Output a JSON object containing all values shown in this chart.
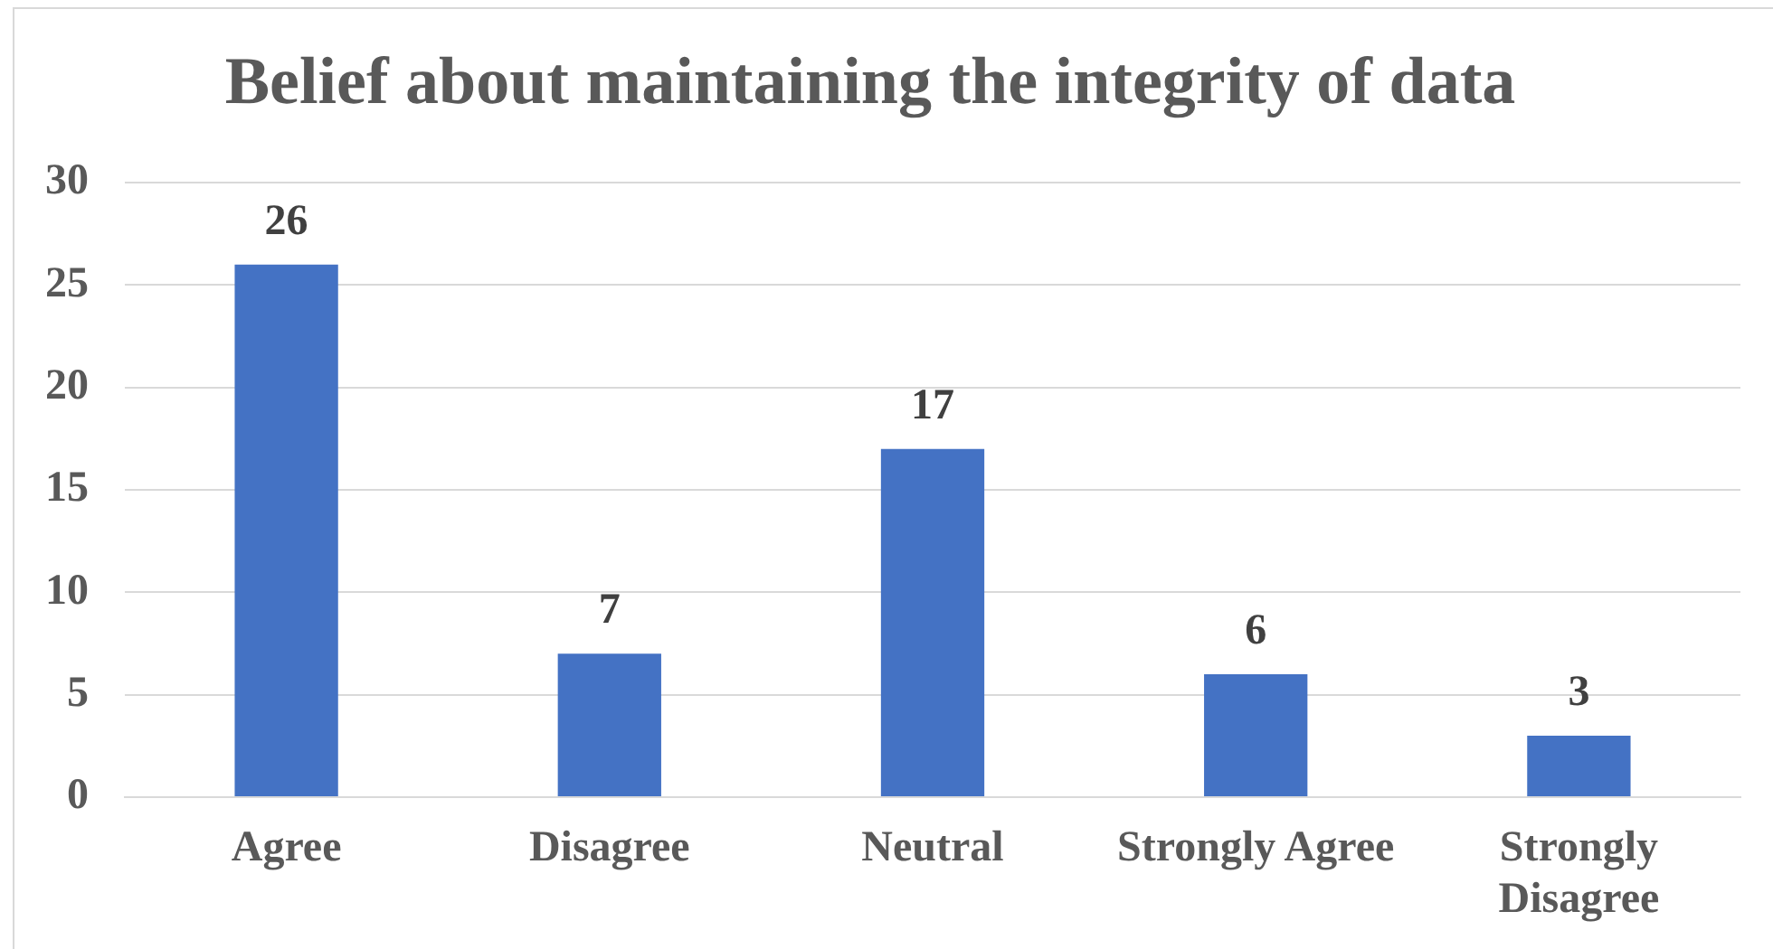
{
  "chart_data": {
    "type": "bar",
    "title": "Belief about maintaining the integrity of data",
    "categories": [
      "Agree",
      "Disagree",
      "Neutral",
      "Strongly Agree",
      "Strongly Disagree"
    ],
    "values": [
      26,
      7,
      17,
      6,
      3
    ],
    "color": "#4472c4",
    "ylim": [
      0,
      30
    ],
    "yticks": [
      0,
      5,
      10,
      15,
      20,
      25,
      30
    ],
    "grid": "y",
    "data_labels": true
  }
}
